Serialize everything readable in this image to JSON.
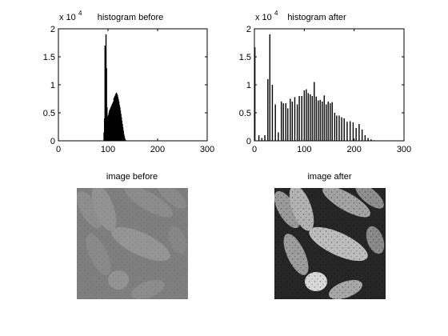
{
  "figure": {
    "background": "#ffffff",
    "bar_color": "#000000",
    "axis_color": "#000000"
  },
  "chart_data": [
    {
      "type": "bar",
      "title": "histogram before",
      "exponent_label": "x 10",
      "exponent_power": "4",
      "xlim": [
        0,
        300
      ],
      "ylim": [
        0,
        20000
      ],
      "xticks": [
        0,
        100,
        200,
        300
      ],
      "xtick_labels": [
        "0",
        "100",
        "200",
        "300"
      ],
      "yticks": [
        0,
        5000,
        10000,
        15000,
        20000
      ],
      "ytick_labels": [
        "0",
        "0.5",
        "1",
        "1.5",
        "2"
      ],
      "grid": false,
      "x": [
        92,
        93,
        94,
        95,
        96,
        97,
        98,
        99,
        100,
        101,
        102,
        103,
        104,
        105,
        106,
        107,
        108,
        109,
        110,
        111,
        112,
        113,
        114,
        115,
        116,
        117,
        118,
        119,
        120,
        121,
        122,
        123,
        124,
        125,
        126,
        127,
        128,
        129,
        130,
        131,
        132,
        133,
        134,
        135,
        136
      ],
      "values": [
        1500,
        4000,
        17000,
        5000,
        19000,
        13000,
        6000,
        4200,
        4400,
        4600,
        5000,
        5400,
        5600,
        5800,
        6000,
        6200,
        6400,
        6600,
        6800,
        7000,
        7600,
        7800,
        8000,
        8200,
        8400,
        8600,
        8400,
        8200,
        7800,
        7400,
        7000,
        6400,
        6000,
        5400,
        4800,
        4200,
        3600,
        3000,
        2400,
        1800,
        1200,
        800,
        400,
        200,
        80
      ]
    },
    {
      "type": "bar",
      "title": "histogram after",
      "exponent_label": "x 10",
      "exponent_power": "4",
      "xlim": [
        0,
        300
      ],
      "ylim": [
        0,
        20000
      ],
      "xticks": [
        0,
        100,
        200,
        300
      ],
      "xtick_labels": [
        "0",
        "100",
        "200",
        "300"
      ],
      "yticks": [
        0,
        5000,
        10000,
        15000,
        20000
      ],
      "ytick_labels": [
        "0",
        "0.5",
        "1",
        "1.5",
        "2"
      ],
      "grid": false,
      "x": [
        1,
        9,
        15,
        21,
        27,
        31,
        36,
        42,
        48,
        54,
        58,
        63,
        67,
        72,
        76,
        81,
        86,
        90,
        95,
        100,
        104,
        108,
        112,
        116,
        120,
        124,
        128,
        132,
        136,
        140,
        144,
        148,
        152,
        156,
        161,
        165,
        170,
        175,
        180,
        186,
        192,
        198,
        204,
        210,
        216,
        222,
        228,
        234,
        240
      ],
      "values": [
        16700,
        1000,
        500,
        1000,
        11000,
        19000,
        10000,
        6500,
        1500,
        7000,
        6700,
        6700,
        5800,
        7500,
        7000,
        7800,
        6500,
        8000,
        8000,
        9000,
        9200,
        8500,
        8300,
        8000,
        10500,
        7900,
        7200,
        7300,
        7000,
        8100,
        6500,
        7000,
        6700,
        6900,
        5000,
        4500,
        4500,
        4200,
        4000,
        3400,
        3500,
        3300,
        2300,
        3000,
        2000,
        1000,
        500,
        250,
        100
      ]
    }
  ],
  "images": [
    {
      "title": "image before"
    },
    {
      "title": "image after"
    }
  ]
}
